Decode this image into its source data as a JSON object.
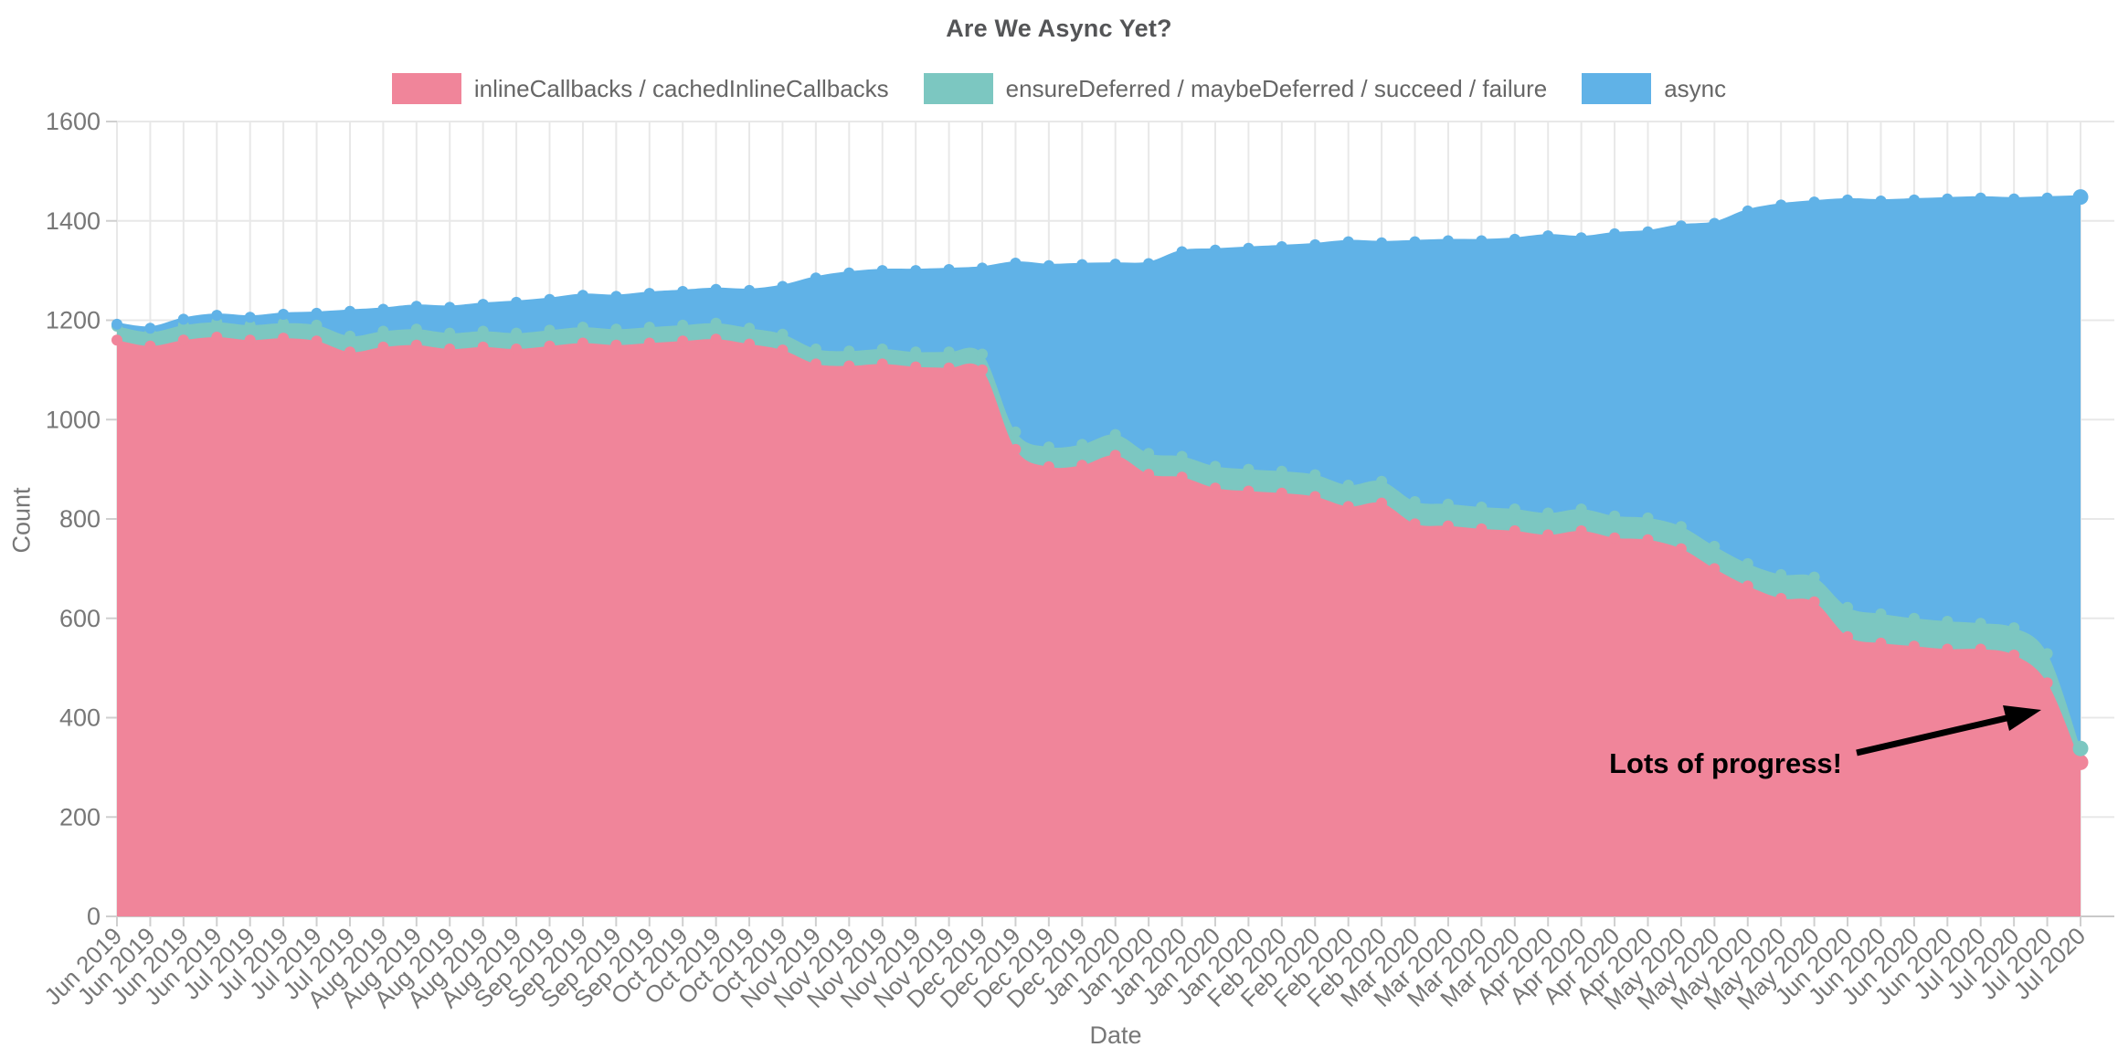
{
  "chart_data": {
    "type": "area",
    "stacked": true,
    "title": "Are We Async Yet?",
    "xlabel": "Date",
    "ylabel": "Count",
    "ylim": [
      0,
      1600
    ],
    "yticks": [
      0,
      200,
      400,
      600,
      800,
      1000,
      1200,
      1400,
      1600
    ],
    "grid": true,
    "legend_position": "top",
    "categories": [
      "Jun 2019",
      "Jun 2019",
      "Jun 2019",
      "Jun 2019",
      "Jul 2019",
      "Jul 2019",
      "Jul 2019",
      "Jul 2019",
      "Aug 2019",
      "Aug 2019",
      "Aug 2019",
      "Aug 2019",
      "Aug 2019",
      "Sep 2019",
      "Sep 2019",
      "Sep 2019",
      "Sep 2019",
      "Oct 2019",
      "Oct 2019",
      "Oct 2019",
      "Oct 2019",
      "Nov 2019",
      "Nov 2019",
      "Nov 2019",
      "Nov 2019",
      "Nov 2019",
      "Dec 2019",
      "Dec 2019",
      "Dec 2019",
      "Dec 2019",
      "Jan 2020",
      "Jan 2020",
      "Jan 2020",
      "Jan 2020",
      "Jan 2020",
      "Feb 2020",
      "Feb 2020",
      "Feb 2020",
      "Feb 2020",
      "Mar 2020",
      "Mar 2020",
      "Mar 2020",
      "Mar 2020",
      "Apr 2020",
      "Apr 2020",
      "Apr 2020",
      "Apr 2020",
      "May 2020",
      "May 2020",
      "May 2020",
      "May 2020",
      "May 2020",
      "Jun 2020",
      "Jun 2020",
      "Jun 2020",
      "Jun 2020",
      "Jul 2020",
      "Jul 2020",
      "Jul 2020",
      "Jul 2020"
    ],
    "series": [
      {
        "name": "inlineCallbacks / cachedInlineCallbacks",
        "color": "#f0859a",
        "values": [
          1160,
          1148,
          1160,
          1166,
          1160,
          1164,
          1158,
          1136,
          1146,
          1150,
          1142,
          1146,
          1142,
          1148,
          1154,
          1150,
          1154,
          1158,
          1162,
          1152,
          1140,
          1112,
          1108,
          1112,
          1106,
          1104,
          1100,
          940,
          905,
          908,
          928,
          890,
          884,
          862,
          856,
          852,
          845,
          825,
          832,
          790,
          786,
          780,
          776,
          768,
          776,
          762,
          758,
          740,
          700,
          665,
          640,
          633,
          563,
          550,
          544,
          538,
          538,
          526,
          470,
          310
        ]
      },
      {
        "name": "ensureDeferred / maybeDeferred / succeed / failure",
        "color": "#7cc7c1",
        "values": [
          28,
          28,
          30,
          30,
          30,
          30,
          32,
          32,
          32,
          32,
          32,
          32,
          32,
          32,
          32,
          32,
          32,
          32,
          32,
          32,
          32,
          30,
          30,
          30,
          30,
          32,
          32,
          35,
          40,
          42,
          42,
          42,
          42,
          44,
          44,
          44,
          44,
          43,
          44,
          45,
          44,
          44,
          44,
          44,
          44,
          44,
          44,
          45,
          45,
          45,
          48,
          50,
          59,
          59,
          56,
          56,
          52,
          55,
          59,
          28
        ]
      },
      {
        "name": "async",
        "color": "#60b2e7",
        "values": [
          4,
          8,
          12,
          14,
          16,
          18,
          24,
          50,
          44,
          46,
          52,
          54,
          62,
          62,
          64,
          66,
          68,
          68,
          68,
          76,
          96,
          143,
          157,
          158,
          164,
          166,
          173,
          340,
          365,
          362,
          343,
          382,
          412,
          435,
          445,
          452,
          463,
          490,
          480,
          523,
          530,
          536,
          543,
          558,
          546,
          568,
          576,
          605,
          650,
          710,
          744,
          755,
          820,
          831,
          842,
          850,
          856,
          863,
          917,
          1110
        ]
      }
    ],
    "annotation": {
      "text": "Lots of progress!",
      "color": "#000000"
    },
    "colors": {
      "grid": "#e8e8e8",
      "axis_line": "#c9c9c9",
      "tick_text": "#777777"
    }
  }
}
